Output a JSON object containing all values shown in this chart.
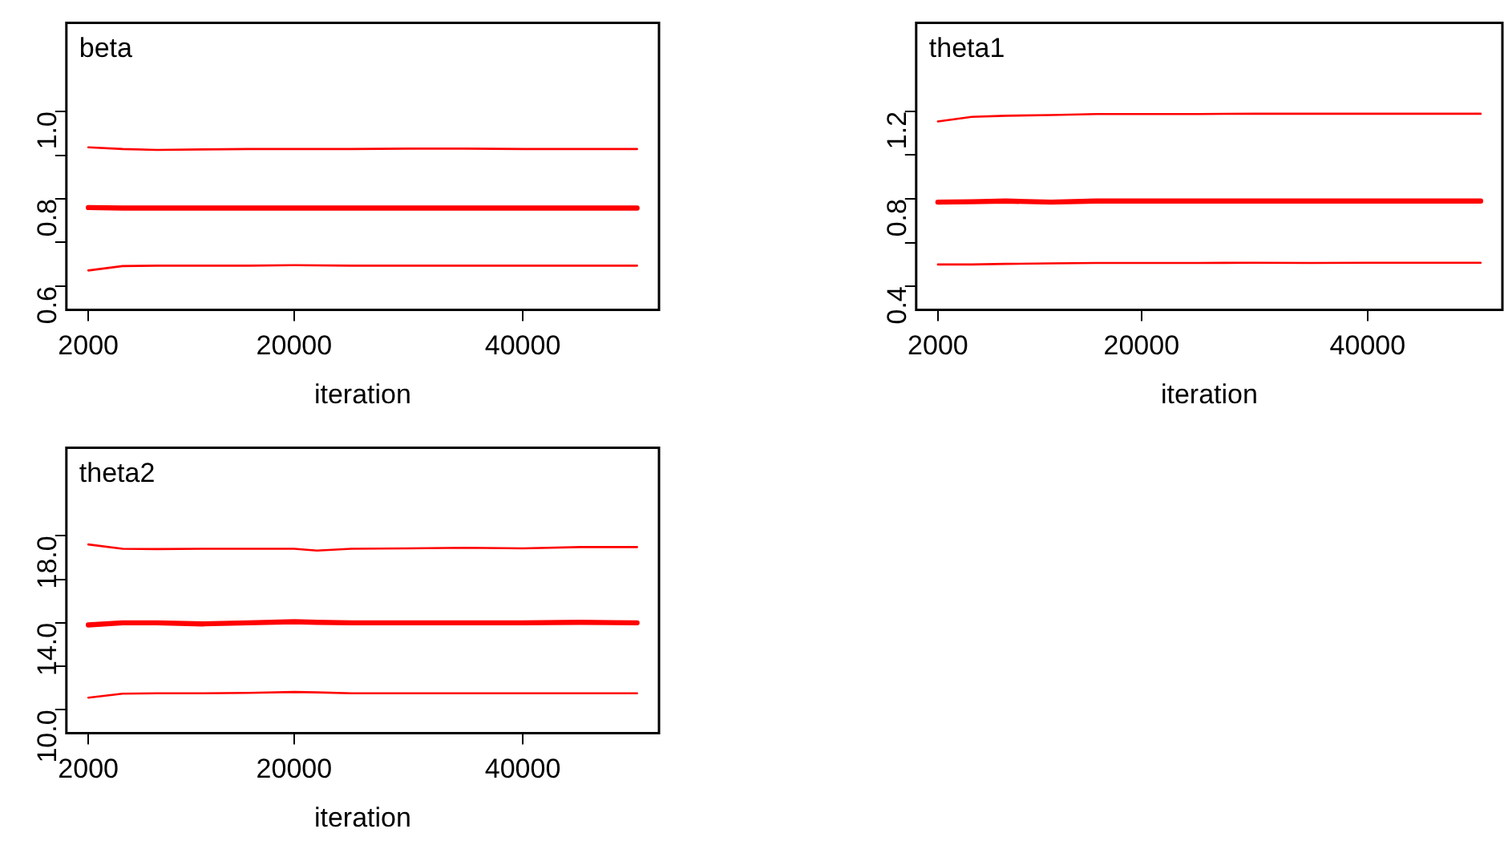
{
  "chart_data": [
    {
      "type": "line",
      "title": "beta",
      "xlabel": "iteration",
      "x": [
        2000,
        5000,
        8000,
        12000,
        16000,
        20000,
        25000,
        30000,
        35000,
        40000,
        45000,
        50000
      ],
      "xlim": [
        80,
        51920
      ],
      "xticks": [
        2000,
        20000,
        40000
      ],
      "ylim": [
        0.546,
        1.203
      ],
      "yticks": [
        {
          "value": 0.6,
          "label": "0.6"
        },
        {
          "value": 0.7,
          "label": null
        },
        {
          "value": 0.8,
          "label": "0.8"
        },
        {
          "value": 0.9,
          "label": null
        },
        {
          "value": 1.0,
          "label": "1.0"
        }
      ],
      "grid": false,
      "legend": false,
      "marker": "none",
      "line_style": "solid",
      "series": [
        {
          "color": "#ff0000",
          "values": [
            0.918,
            0.914,
            0.912,
            0.913,
            0.914,
            0.914,
            0.914,
            0.915,
            0.915,
            0.914,
            0.914,
            0.914
          ]
        },
        {
          "color": "#ff0000",
          "values": [
            0.78,
            0.779,
            0.779,
            0.779,
            0.779,
            0.779,
            0.779,
            0.779,
            0.779,
            0.779,
            0.779,
            0.779
          ]
        },
        {
          "color": "#ff0000",
          "values": [
            0.636,
            0.646,
            0.647,
            0.647,
            0.647,
            0.648,
            0.647,
            0.647,
            0.647,
            0.647,
            0.647,
            0.647
          ]
        }
      ]
    },
    {
      "type": "line",
      "title": "theta1",
      "xlabel": "iteration",
      "x": [
        2000,
        5000,
        8000,
        12000,
        16000,
        20000,
        25000,
        30000,
        35000,
        40000,
        45000,
        50000
      ],
      "xlim": [
        80,
        51920
      ],
      "xticks": [
        2000,
        20000,
        40000
      ],
      "ylim": [
        0.293,
        1.605
      ],
      "yticks": [
        {
          "value": 0.4,
          "label": "0.4"
        },
        {
          "value": 0.6,
          "label": null
        },
        {
          "value": 0.8,
          "label": "0.8"
        },
        {
          "value": 1.0,
          "label": null
        },
        {
          "value": 1.2,
          "label": "1.2"
        }
      ],
      "grid": false,
      "legend": false,
      "marker": "none",
      "line_style": "solid",
      "series": [
        {
          "color": "#ff0000",
          "values": [
            1.154,
            1.175,
            1.18,
            1.183,
            1.188,
            1.188,
            1.188,
            1.189,
            1.189,
            1.189,
            1.189,
            1.189
          ]
        },
        {
          "color": "#ff0000",
          "values": [
            0.785,
            0.787,
            0.79,
            0.785,
            0.79,
            0.79,
            0.79,
            0.79,
            0.79,
            0.79,
            0.79,
            0.79
          ]
        },
        {
          "color": "#ff0000",
          "values": [
            0.5,
            0.5,
            0.503,
            0.505,
            0.507,
            0.507,
            0.507,
            0.508,
            0.507,
            0.508,
            0.508,
            0.508
          ]
        }
      ]
    },
    {
      "type": "line",
      "title": "theta2",
      "xlabel": "iteration",
      "x": [
        2000,
        5000,
        8000,
        12000,
        16000,
        20000,
        22000,
        25000,
        30000,
        35000,
        40000,
        45000,
        50000
      ],
      "xlim": [
        80,
        51920
      ],
      "xticks": [
        2000,
        20000,
        40000
      ],
      "ylim": [
        8.93,
        22.05
      ],
      "yticks": [
        {
          "value": 10,
          "label": "10.0"
        },
        {
          "value": 12,
          "label": null
        },
        {
          "value": 14,
          "label": "14.0"
        },
        {
          "value": 16,
          "label": null
        },
        {
          "value": 18,
          "label": "18.0"
        }
      ],
      "grid": false,
      "legend": false,
      "marker": "none",
      "line_style": "solid",
      "series": [
        {
          "color": "#ff0000",
          "values": [
            17.6,
            17.4,
            17.39,
            17.4,
            17.4,
            17.4,
            17.32,
            17.4,
            17.42,
            17.45,
            17.42,
            17.48,
            17.48
          ]
        },
        {
          "color": "#ff0000",
          "values": [
            13.9,
            14.0,
            14.0,
            13.95,
            14.0,
            14.05,
            14.02,
            14.0,
            14.0,
            14.0,
            14.0,
            14.02,
            14.0
          ]
        },
        {
          "color": "#ff0000",
          "values": [
            10.56,
            10.74,
            10.76,
            10.76,
            10.78,
            10.82,
            10.8,
            10.76,
            10.76,
            10.76,
            10.76,
            10.76,
            10.76
          ]
        }
      ]
    }
  ]
}
